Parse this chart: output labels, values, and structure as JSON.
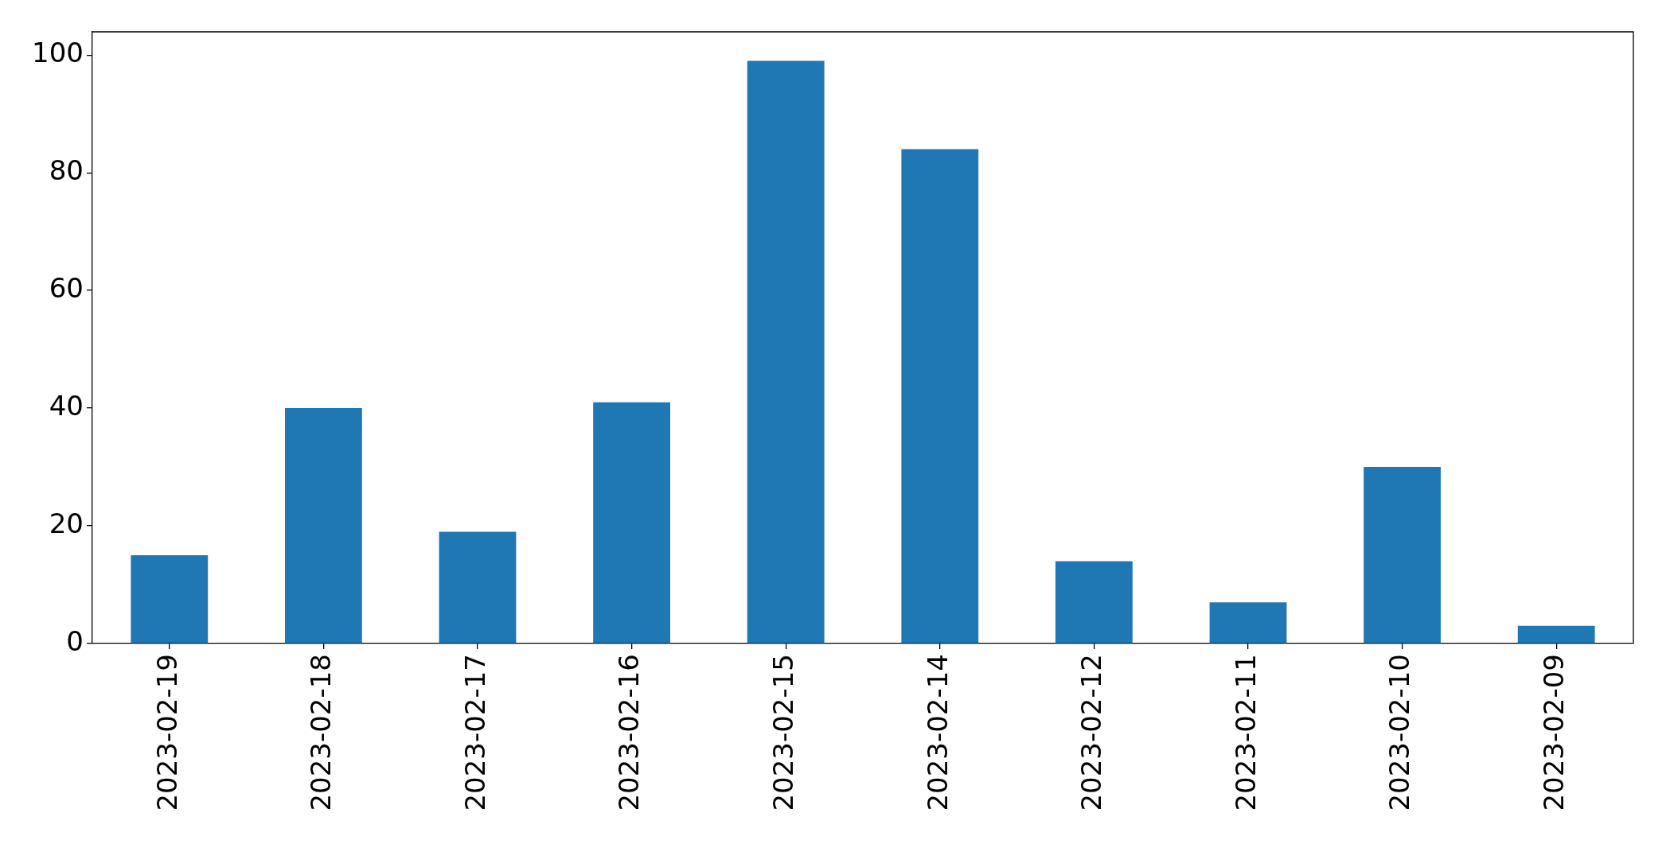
{
  "chart_data": {
    "type": "bar",
    "categories": [
      "2023-02-19",
      "2023-02-18",
      "2023-02-17",
      "2023-02-16",
      "2023-02-15",
      "2023-02-14",
      "2023-02-12",
      "2023-02-11",
      "2023-02-10",
      "2023-02-09"
    ],
    "values": [
      15,
      40,
      19,
      41,
      99,
      84,
      14,
      7,
      30,
      3
    ],
    "color": "#1f77b4",
    "ylim": [
      0,
      103.95
    ],
    "yticks": [
      0,
      20,
      40,
      60,
      80,
      100
    ],
    "grid": false,
    "legend": false
  }
}
